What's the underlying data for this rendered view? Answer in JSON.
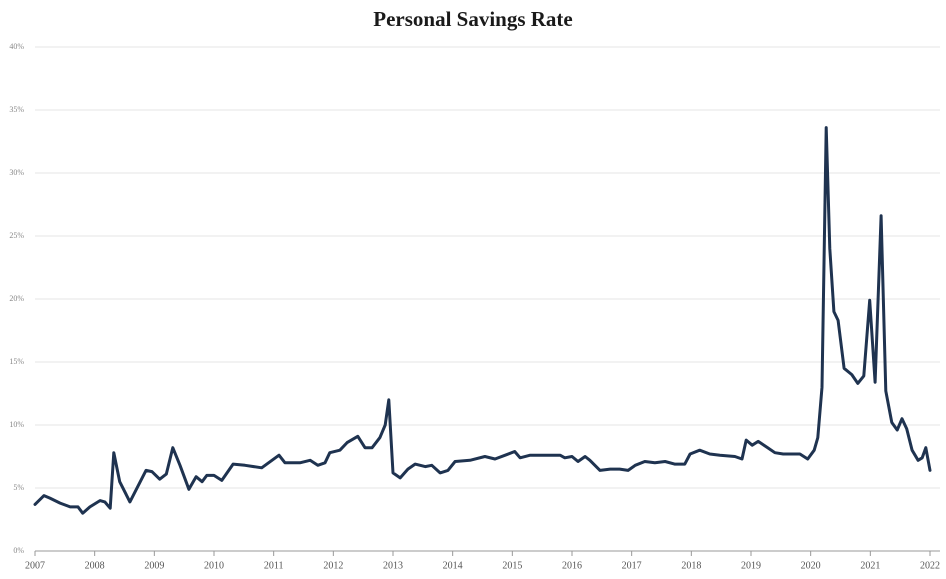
{
  "chart_data": {
    "type": "line",
    "title": "Personal Savings Rate",
    "x": [
      2007.0,
      2007.15,
      2007.25,
      2007.42,
      2007.59,
      2007.72,
      2007.8,
      2007.92,
      2008.09,
      2008.17,
      2008.26,
      2008.32,
      2008.42,
      2008.59,
      2008.86,
      2008.96,
      2009.09,
      2009.2,
      2009.31,
      2009.43,
      2009.58,
      2009.7,
      2009.8,
      2009.88,
      2010.0,
      2010.13,
      2010.32,
      2010.52,
      2010.8,
      2011.09,
      2011.19,
      2011.44,
      2011.61,
      2011.74,
      2011.86,
      2011.94,
      2012.11,
      2012.23,
      2012.41,
      2012.53,
      2012.65,
      2012.78,
      2012.87,
      2012.93,
      2013.0,
      2013.12,
      2013.25,
      2013.37,
      2013.54,
      2013.65,
      2013.79,
      2013.92,
      2014.04,
      2014.29,
      2014.54,
      2014.71,
      2014.88,
      2015.04,
      2015.13,
      2015.3,
      2015.55,
      2015.8,
      2015.88,
      2016.0,
      2016.1,
      2016.22,
      2016.3,
      2016.47,
      2016.64,
      2016.8,
      2016.94,
      2017.06,
      2017.22,
      2017.39,
      2017.56,
      2017.72,
      2017.89,
      2017.98,
      2018.14,
      2018.31,
      2018.48,
      2018.73,
      2018.85,
      2018.92,
      2019.02,
      2019.12,
      2019.28,
      2019.4,
      2019.54,
      2019.65,
      2019.82,
      2019.95,
      2020.06,
      2020.12,
      2020.19,
      2020.26,
      2020.32,
      2020.39,
      2020.46,
      2020.56,
      2020.69,
      2020.79,
      2020.89,
      2020.99,
      2021.08,
      2021.18,
      2021.26,
      2021.36,
      2021.45,
      2021.53,
      2021.61,
      2021.7,
      2021.8,
      2021.87,
      2021.93,
      2022.0
    ],
    "series": [
      {
        "name": "Personal Savings Rate",
        "color": "#1f3350",
        "values": [
          3.7,
          4.4,
          4.2,
          3.8,
          3.5,
          3.5,
          3.0,
          3.5,
          4.0,
          3.9,
          3.4,
          7.8,
          5.5,
          3.9,
          6.4,
          6.3,
          5.7,
          6.1,
          8.2,
          6.8,
          4.9,
          5.9,
          5.5,
          6.0,
          6.0,
          5.6,
          6.9,
          6.8,
          6.6,
          7.6,
          7.0,
          7.0,
          7.2,
          6.8,
          7.0,
          7.8,
          8.0,
          8.6,
          9.1,
          8.2,
          8.2,
          9.0,
          10.0,
          12.0,
          6.2,
          5.8,
          6.5,
          6.9,
          6.7,
          6.8,
          6.2,
          6.4,
          7.1,
          7.2,
          7.5,
          7.3,
          7.6,
          7.9,
          7.4,
          7.6,
          7.6,
          7.6,
          7.4,
          7.5,
          7.1,
          7.5,
          7.2,
          6.4,
          6.5,
          6.5,
          6.4,
          6.8,
          7.1,
          7.0,
          7.1,
          6.9,
          6.9,
          7.7,
          8.0,
          7.7,
          7.6,
          7.5,
          7.3,
          8.8,
          8.4,
          8.7,
          8.2,
          7.8,
          7.7,
          7.7,
          7.7,
          7.3,
          8.0,
          9.0,
          13.0,
          33.6,
          24.0,
          19.0,
          18.3,
          14.5,
          14.0,
          13.3,
          13.9,
          19.9,
          13.4,
          26.6,
          12.7,
          10.2,
          9.6,
          10.5,
          9.7,
          8.0,
          7.2,
          7.4,
          8.2,
          6.4
        ]
      }
    ],
    "xlim": [
      2007,
      2022
    ],
    "xticks": [
      2007,
      2008,
      2009,
      2010,
      2011,
      2012,
      2013,
      2014,
      2015,
      2016,
      2017,
      2018,
      2019,
      2020,
      2021,
      2022
    ],
    "ylim": [
      0,
      40
    ],
    "yticks": [
      {
        "value": 0,
        "label": "0%"
      },
      {
        "value": 5,
        "label": "5%"
      },
      {
        "value": 10,
        "label": "10%"
      },
      {
        "value": 15,
        "label": "15%"
      },
      {
        "value": 20,
        "label": "20%"
      },
      {
        "value": 25,
        "label": "25%"
      },
      {
        "value": 30,
        "label": "30%"
      },
      {
        "value": 35,
        "label": "35%"
      },
      {
        "value": 40,
        "label": "40%"
      }
    ],
    "grid": true
  }
}
